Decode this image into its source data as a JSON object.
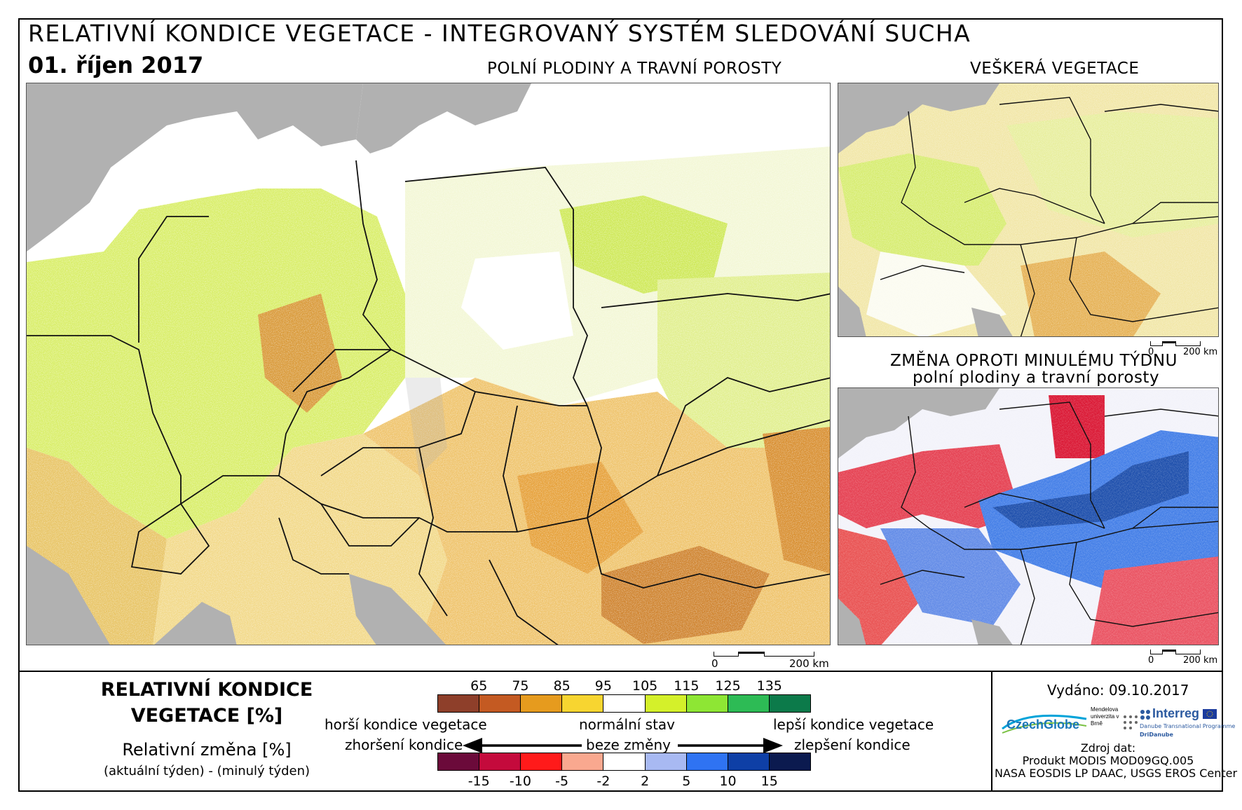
{
  "header": {
    "title": "RELATIVNÍ KONDICE VEGETACE - INTEGROVANÝ SYSTÉM SLEDOVÁNÍ SUCHA",
    "date": "01. říjen 2017"
  },
  "maps": {
    "main_title": "POLNÍ PLODINY A TRAVNÍ POROSTY",
    "all_title": "VEŠKERÁ VEGETACE",
    "change_title_1": "ZMĚNA OPROTI MINULÉMU TÝDNU",
    "change_title_2": "polní plodiny a travní porosty"
  },
  "scalebars": {
    "main": {
      "zero": "0",
      "max": "200 km"
    },
    "all": {
      "zero": "0",
      "max": "200 km"
    },
    "change": {
      "zero": "0",
      "max": "200 km"
    }
  },
  "legend": {
    "title_line1": "RELATIVNÍ KONDICE",
    "title_line2": "VEGETACE [%]",
    "change_title": "Relativní změna [%]",
    "change_sub": "(aktuální týden) - (minulý týden)",
    "condition_ticks": [
      "65",
      "75",
      "85",
      "95",
      "105",
      "115",
      "125",
      "135"
    ],
    "condition_colors": [
      "#8e3f2a",
      "#c45a22",
      "#e69b1e",
      "#f7d530",
      "#ffffff",
      "#d4f02a",
      "#8ee634",
      "#2dbb55",
      "#0c7a4a"
    ],
    "change_ticks": [
      "-15",
      "-10",
      "-5",
      "-2",
      "2",
      "5",
      "10",
      "15"
    ],
    "change_colors": [
      "#6b0a3a",
      "#c40a3c",
      "#ff1a1a",
      "#f9a88f",
      "#ffffff",
      "#a8b9f2",
      "#2f73f2",
      "#0e3fa6",
      "#0b1a4f"
    ],
    "worse_condition": "horší kondice vegetace",
    "worsening": "zhoršení kondice",
    "normal_state": "normální stav",
    "no_change": "beze změny",
    "better_condition": "lepší kondice vegetace",
    "improvement": "zlepšení kondice"
  },
  "footer": {
    "issued": "Vydáno: 09.10.2017",
    "logo_czechglobe": "CzechGlobe",
    "logo_mendelu": "Mendelova univerzita v Brně",
    "logo_interreg": "Interreg",
    "logo_danube": "Danube Transnational Programme",
    "logo_dridanube": "DriDanube",
    "source_label": "Zdroj dat:",
    "source_1": "Produkt MODIS MOD09GQ.005",
    "source_2": "NASA EOSDIS LP DAAC, USGS EROS Center"
  }
}
